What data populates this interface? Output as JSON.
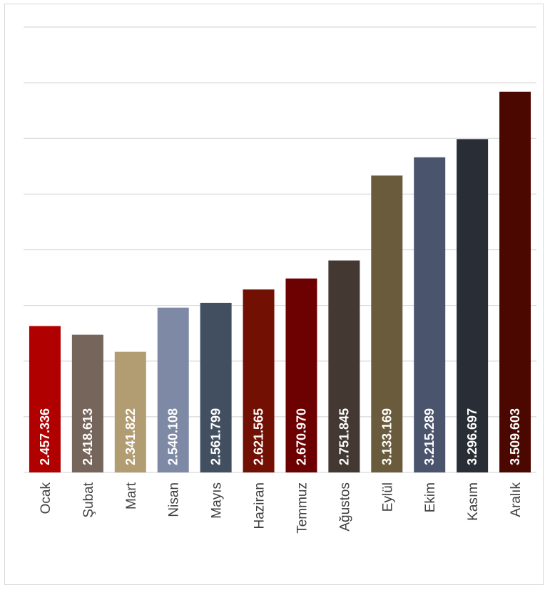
{
  "chart_data": {
    "type": "bar",
    "categories": [
      "Ocak",
      "Şubat",
      "Mart",
      "Nisan",
      "Mayıs",
      "Haziran",
      "Temmuz",
      "Ağustos",
      "Eylül",
      "Ekim",
      "Kasım",
      "Aralık"
    ],
    "values": [
      2457336,
      2418613,
      2341822,
      2540108,
      2561799,
      2621565,
      2670970,
      2751845,
      3133169,
      3215289,
      3296697,
      3509603
    ],
    "data_labels": [
      "2.457.336",
      "2.418.613",
      "2.341.822",
      "2.540.108",
      "2.561.799",
      "2.621.565",
      "2.670.970",
      "2.751.845",
      "3.133.169",
      "3.215.289",
      "3.296.697",
      "3.509.603"
    ],
    "colors": [
      "#b00000",
      "#76655a",
      "#b29c72",
      "#7e8aa5",
      "#424f61",
      "#731004",
      "#6d0000",
      "#433832",
      "#6a5b3c",
      "#4a556d",
      "#282d36",
      "#4a0800"
    ],
    "title": "",
    "xlabel": "",
    "ylabel": "",
    "ylim": [
      1800000,
      3800000
    ],
    "grid": true,
    "legend": "none",
    "y_tick_labels_visible": false
  }
}
